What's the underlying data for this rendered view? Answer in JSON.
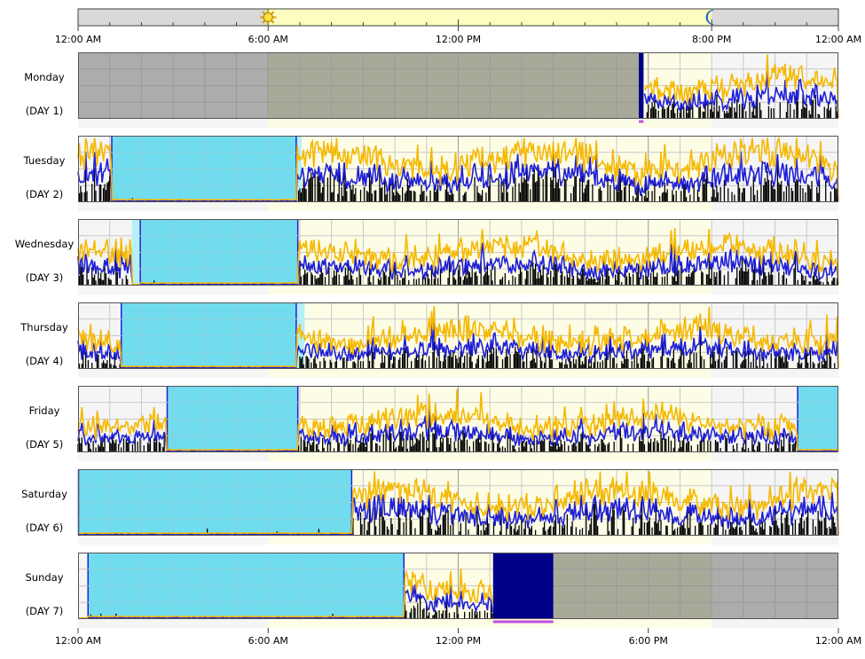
{
  "chart_data": {
    "type": "area",
    "title": "",
    "x_axis": {
      "range_hours": [
        0,
        24
      ],
      "tick_hours": [
        0,
        6,
        12,
        20,
        24
      ],
      "tick_labels": [
        "12:00 AM",
        "6:00 AM",
        "12:00 PM",
        "8:00 PM",
        "12:00 AM"
      ],
      "bottom_tick_hours": [
        0,
        6,
        12,
        18,
        24
      ],
      "bottom_tick_labels": [
        "12:00 AM",
        "6:00 AM",
        "12:00 PM",
        "6:00 PM",
        "12:00 AM"
      ]
    },
    "daylight_bar": {
      "sunrise_hour": 6,
      "sunset_hour": 20,
      "sun_icon": "sun-icon",
      "moon_icon": "moon-icon"
    },
    "series": [
      {
        "key": "yellow",
        "color": "#f5b800"
      },
      {
        "key": "blue",
        "color": "#1f1fd6"
      },
      {
        "key": "black",
        "color": "#000000"
      }
    ],
    "colors": {
      "sleep": "#72dcef",
      "sleep_edge": "#b4f0f8",
      "offwrist": "#a8a8a8",
      "offwrist_day": "#a9a99a",
      "excluded": "#000088",
      "marker": "#c050e0",
      "day_bg": "#fdfde6",
      "night_bg": "#f5f5f5",
      "grid": "#c8c8c8"
    },
    "days": [
      {
        "label": "Monday",
        "sub": "(DAY 1)",
        "offwrist": [
          [
            0,
            17.7
          ]
        ],
        "excluded": [
          [
            17.7,
            17.85
          ]
        ],
        "sleep": [],
        "marker": [
          17.7,
          17.85
        ],
        "active": [
          [
            17.85,
            24
          ]
        ],
        "level": 0.5
      },
      {
        "label": "Tuesday",
        "sub": "(DAY 2)",
        "offwrist": [],
        "excluded": [],
        "sleep": [
          [
            1.05,
            6.9
          ]
        ],
        "sleep_edge": [
          [
            6.9,
            7.05
          ]
        ],
        "marker": null,
        "active": [
          [
            0,
            1.05
          ],
          [
            6.9,
            24
          ]
        ],
        "level": 0.62
      },
      {
        "label": "Wednesday",
        "sub": "(DAY 3)",
        "offwrist": [],
        "excluded": [],
        "sleep": [
          [
            1.95,
            6.95
          ]
        ],
        "sleep_edge": [
          [
            1.7,
            1.95
          ]
        ],
        "marker": null,
        "active": [
          [
            0,
            1.7
          ],
          [
            6.95,
            24
          ]
        ],
        "level": 0.45
      },
      {
        "label": "Thursday",
        "sub": "(DAY 4)",
        "offwrist": [],
        "excluded": [],
        "sleep": [
          [
            1.35,
            6.9
          ]
        ],
        "sleep_edge": [
          [
            6.9,
            7.15
          ]
        ],
        "marker": null,
        "active": [
          [
            0,
            1.35
          ],
          [
            6.9,
            24
          ]
        ],
        "level": 0.45
      },
      {
        "label": "Friday",
        "sub": "(DAY 5)",
        "offwrist": [],
        "excluded": [],
        "sleep": [
          [
            2.8,
            6.95
          ],
          [
            22.7,
            24
          ]
        ],
        "sleep_edge": [],
        "marker": null,
        "active": [
          [
            0,
            2.8
          ],
          [
            6.95,
            22.7
          ]
        ],
        "level": 0.42
      },
      {
        "label": "Saturday",
        "sub": "(DAY 6)",
        "offwrist": [],
        "excluded": [],
        "sleep": [
          [
            0,
            8.65
          ]
        ],
        "sleep_edge": [],
        "marker": null,
        "active": [
          [
            8.65,
            24
          ]
        ],
        "level": 0.55
      },
      {
        "label": "Sunday",
        "sub": "(DAY 7)",
        "offwrist": [
          [
            15,
            24
          ]
        ],
        "excluded": [
          [
            13.1,
            15
          ]
        ],
        "sleep": [
          [
            0.3,
            10.3
          ]
        ],
        "sleep_edge": [],
        "marker": [
          13.1,
          15
        ],
        "active": [
          [
            10.3,
            13.1
          ]
        ],
        "level": 0.5
      }
    ]
  }
}
